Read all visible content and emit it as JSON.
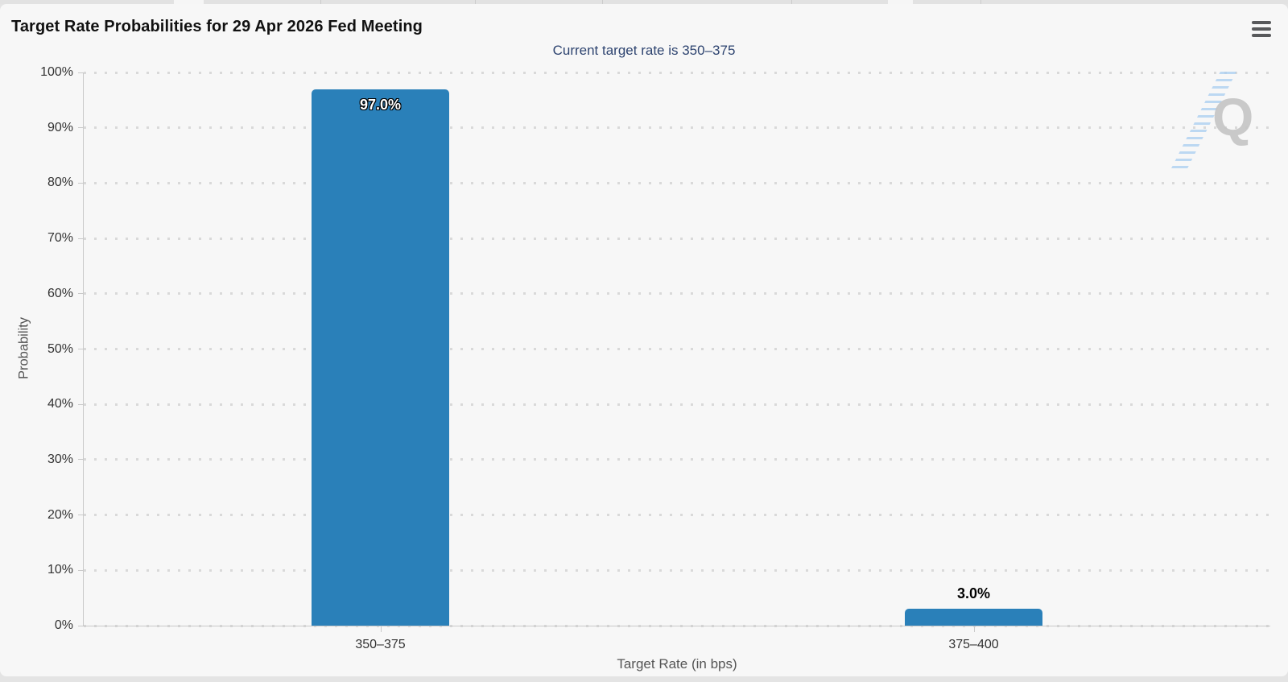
{
  "header": {
    "title": "Target Rate Probabilities for 29 Apr 2026 Fed Meeting",
    "icons": {
      "menu": "hamburger-icon"
    }
  },
  "chart_data": {
    "type": "bar",
    "title": "Target Rate Probabilities for 29 Apr 2026 Fed Meeting",
    "subtitle": "Current target rate is 350–375",
    "categories": [
      "350–375",
      "375–400"
    ],
    "values": [
      97.0,
      3.0
    ],
    "value_labels": [
      "97.0%",
      "3.0%"
    ],
    "xlabel": "Target Rate (in bps)",
    "ylabel": "Probability",
    "ylim": [
      0,
      100
    ],
    "ytick_step": 10,
    "ytick_labels": [
      "0%",
      "10%",
      "20%",
      "30%",
      "40%",
      "50%",
      "60%",
      "70%",
      "80%",
      "90%",
      "100%"
    ],
    "grid": "horizontal-dotted",
    "legend": "none",
    "watermark": "Q"
  },
  "colors": {
    "accent_bar": "#2a80b9",
    "title_text": "#111111",
    "subtitle_text": "#2e4470",
    "tick_label": "#333333",
    "axis_title": "#555555",
    "axis_line": "#c9c9c9",
    "grid_dot": "#d9d9d9",
    "card_bg": "#f7f7f7",
    "page_bg": "#e4e4e4",
    "menu_icon": "#58595b",
    "watermark_gray": "#c5c5c5",
    "watermark_blue": "#a9cdf0"
  }
}
